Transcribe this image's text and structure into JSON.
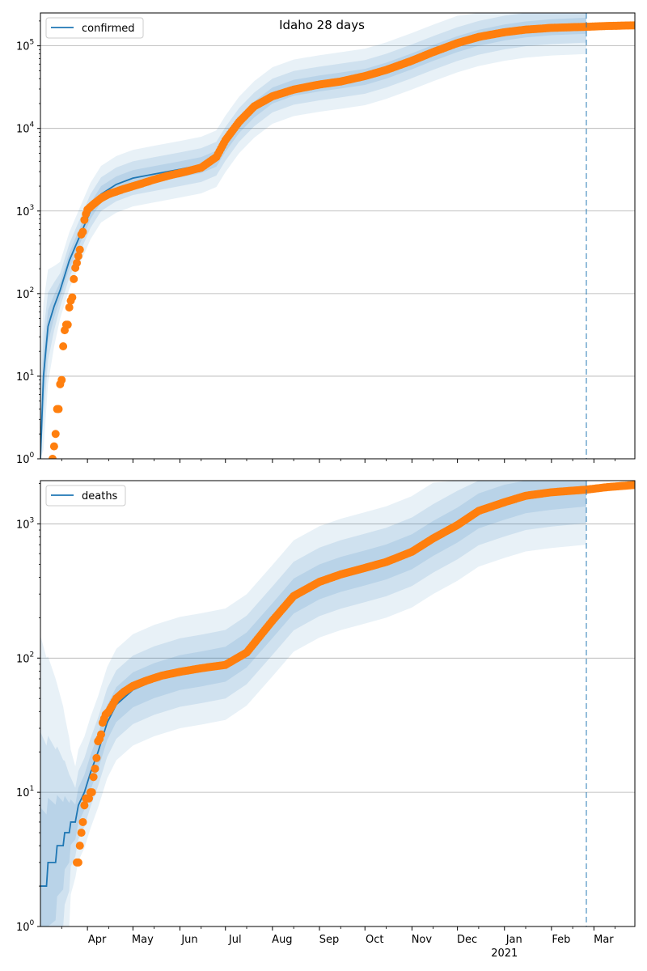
{
  "figure": {
    "title": "Idaho 28 days"
  },
  "chart_data": [
    {
      "type": "line",
      "panel": "top",
      "scale": "log",
      "ylim": [
        1,
        250000
      ],
      "xlim": [
        "2020-03-01",
        "2021-03-28"
      ],
      "legend": {
        "label": "confirmed",
        "placement": "top-left"
      },
      "forecast_marker": "2021-02-24",
      "yticks": [
        {
          "value": 1,
          "base": "10",
          "exp": "0"
        },
        {
          "value": 10,
          "base": "10",
          "exp": "1"
        },
        {
          "value": 100,
          "base": "10",
          "exp": "2"
        },
        {
          "value": 1000,
          "base": "10",
          "exp": "3"
        },
        {
          "value": 10000,
          "base": "10",
          "exp": "4"
        },
        {
          "value": 100000,
          "base": "10",
          "exp": "5"
        }
      ],
      "grid": "y",
      "model": [
        [
          "2020-03-01",
          1
        ],
        [
          "2020-03-03",
          10
        ],
        [
          "2020-03-06",
          40
        ],
        [
          "2020-03-10",
          70
        ],
        [
          "2020-03-14",
          110
        ],
        [
          "2020-03-20",
          250
        ],
        [
          "2020-03-27",
          500
        ],
        [
          "2020-04-03",
          1000
        ],
        [
          "2020-04-10",
          1600
        ],
        [
          "2020-04-20",
          2100
        ],
        [
          "2020-05-01",
          2500
        ],
        [
          "2020-05-15",
          2800
        ],
        [
          "2020-06-01",
          3200
        ],
        [
          "2020-06-15",
          3600
        ],
        [
          "2020-06-25",
          4300
        ],
        [
          "2020-07-01",
          6500
        ],
        [
          "2020-07-10",
          11000
        ],
        [
          "2020-07-20",
          17000
        ],
        [
          "2020-08-01",
          25000
        ],
        [
          "2020-08-15",
          31000
        ],
        [
          "2020-09-01",
          35000
        ],
        [
          "2020-09-15",
          38000
        ],
        [
          "2020-10-01",
          42000
        ],
        [
          "2020-10-15",
          50000
        ],
        [
          "2020-11-01",
          65000
        ],
        [
          "2020-11-15",
          82000
        ],
        [
          "2020-12-01",
          105000
        ],
        [
          "2020-12-15",
          125000
        ],
        [
          "2021-01-01",
          145000
        ],
        [
          "2021-01-15",
          158000
        ],
        [
          "2021-02-01",
          168000
        ],
        [
          "2021-02-24",
          175000
        ]
      ],
      "observed": [
        [
          "2020-03-09",
          1
        ],
        [
          "2020-03-11",
          2
        ],
        [
          "2020-03-12",
          4
        ],
        [
          "2020-03-13",
          4
        ],
        [
          "2020-03-14",
          8
        ],
        [
          "2020-03-15",
          9
        ],
        [
          "2020-03-16",
          23
        ],
        [
          "2020-03-17",
          36
        ],
        [
          "2020-03-18",
          42
        ],
        [
          "2020-03-19",
          42
        ],
        [
          "2020-03-20",
          68
        ],
        [
          "2020-03-21",
          82
        ],
        [
          "2020-03-22",
          90
        ],
        [
          "2020-03-23",
          150
        ],
        [
          "2020-03-24",
          205
        ],
        [
          "2020-03-25",
          235
        ],
        [
          "2020-03-26",
          285
        ],
        [
          "2020-03-27",
          340
        ],
        [
          "2020-03-28",
          520
        ],
        [
          "2020-03-29",
          560
        ],
        [
          "2020-03-30",
          780
        ],
        [
          "2020-03-31",
          920
        ],
        [
          "2020-04-01",
          1040
        ],
        [
          "2020-04-05",
          1210
        ],
        [
          "2020-04-10",
          1430
        ],
        [
          "2020-04-15",
          1600
        ],
        [
          "2020-04-25",
          1850
        ],
        [
          "2020-05-05",
          2100
        ],
        [
          "2020-05-15",
          2400
        ],
        [
          "2020-05-25",
          2700
        ],
        [
          "2020-06-05",
          3000
        ],
        [
          "2020-06-15",
          3350
        ],
        [
          "2020-06-25",
          4500
        ],
        [
          "2020-07-01",
          7200
        ],
        [
          "2020-07-10",
          12000
        ],
        [
          "2020-07-20",
          18500
        ],
        [
          "2020-08-01",
          24500
        ],
        [
          "2020-08-15",
          29500
        ],
        [
          "2020-09-01",
          34000
        ],
        [
          "2020-09-15",
          37000
        ],
        [
          "2020-10-01",
          43000
        ],
        [
          "2020-10-15",
          51000
        ],
        [
          "2020-11-01",
          66000
        ],
        [
          "2020-11-15",
          84000
        ],
        [
          "2020-12-01",
          108000
        ],
        [
          "2020-12-15",
          128000
        ],
        [
          "2021-01-01",
          146000
        ],
        [
          "2021-01-15",
          157000
        ],
        [
          "2021-02-01",
          165000
        ],
        [
          "2021-02-24",
          170000
        ],
        [
          "2021-03-10",
          174000
        ],
        [
          "2021-03-28",
          177000
        ]
      ]
    },
    {
      "type": "line",
      "panel": "bottom",
      "scale": "log",
      "ylim": [
        1,
        2100
      ],
      "xlim": [
        "2020-03-01",
        "2021-03-28"
      ],
      "legend": {
        "label": "deaths",
        "placement": "top-left"
      },
      "forecast_marker": "2021-02-24",
      "yticks": [
        {
          "value": 1,
          "base": "10",
          "exp": "0"
        },
        {
          "value": 10,
          "base": "10",
          "exp": "1"
        },
        {
          "value": 100,
          "base": "10",
          "exp": "2"
        },
        {
          "value": 1000,
          "base": "10",
          "exp": "3"
        }
      ],
      "grid": "y",
      "model": [
        [
          "2020-03-01",
          2
        ],
        [
          "2020-03-05",
          2
        ],
        [
          "2020-03-06",
          3
        ],
        [
          "2020-03-11",
          3
        ],
        [
          "2020-03-12",
          4
        ],
        [
          "2020-03-16",
          4
        ],
        [
          "2020-03-17",
          5
        ],
        [
          "2020-03-20",
          5
        ],
        [
          "2020-03-21",
          6
        ],
        [
          "2020-03-24",
          6
        ],
        [
          "2020-03-26",
          8
        ],
        [
          "2020-03-30",
          10
        ],
        [
          "2020-04-03",
          14
        ],
        [
          "2020-04-08",
          20
        ],
        [
          "2020-04-14",
          33
        ],
        [
          "2020-04-20",
          45
        ],
        [
          "2020-05-01",
          58
        ],
        [
          "2020-05-15",
          68
        ],
        [
          "2020-06-01",
          78
        ],
        [
          "2020-06-15",
          83
        ],
        [
          "2020-07-01",
          90
        ],
        [
          "2020-07-15",
          115
        ],
        [
          "2020-08-01",
          190
        ],
        [
          "2020-08-15",
          290
        ],
        [
          "2020-09-01",
          370
        ],
        [
          "2020-09-15",
          420
        ],
        [
          "2020-10-01",
          470
        ],
        [
          "2020-10-15",
          520
        ],
        [
          "2020-11-01",
          620
        ],
        [
          "2020-11-15",
          780
        ],
        [
          "2020-12-01",
          980
        ],
        [
          "2020-12-15",
          1250
        ],
        [
          "2021-01-01",
          1450
        ],
        [
          "2021-01-15",
          1620
        ],
        [
          "2021-02-01",
          1720
        ],
        [
          "2021-02-24",
          1820
        ]
      ],
      "observed": [
        [
          "2020-03-25",
          3
        ],
        [
          "2020-03-26",
          3
        ],
        [
          "2020-03-27",
          4
        ],
        [
          "2020-03-28",
          5
        ],
        [
          "2020-03-29",
          6
        ],
        [
          "2020-03-30",
          8
        ],
        [
          "2020-03-31",
          9
        ],
        [
          "2020-04-02",
          9
        ],
        [
          "2020-04-03",
          10
        ],
        [
          "2020-04-04",
          10
        ],
        [
          "2020-04-05",
          13
        ],
        [
          "2020-04-06",
          15
        ],
        [
          "2020-04-07",
          18
        ],
        [
          "2020-04-08",
          24
        ],
        [
          "2020-04-09",
          25
        ],
        [
          "2020-04-10",
          27
        ],
        [
          "2020-04-11",
          33
        ],
        [
          "2020-04-13",
          38
        ],
        [
          "2020-04-15",
          40
        ],
        [
          "2020-04-20",
          50
        ],
        [
          "2020-04-25",
          56
        ],
        [
          "2020-05-01",
          62
        ],
        [
          "2020-05-10",
          68
        ],
        [
          "2020-05-20",
          74
        ],
        [
          "2020-06-01",
          79
        ],
        [
          "2020-06-15",
          84
        ],
        [
          "2020-07-01",
          89
        ],
        [
          "2020-07-15",
          110
        ],
        [
          "2020-08-01",
          190
        ],
        [
          "2020-08-15",
          290
        ],
        [
          "2020-09-01",
          370
        ],
        [
          "2020-09-15",
          420
        ],
        [
          "2020-10-01",
          470
        ],
        [
          "2020-10-15",
          520
        ],
        [
          "2020-11-01",
          620
        ],
        [
          "2020-11-15",
          780
        ],
        [
          "2020-12-01",
          980
        ],
        [
          "2020-12-15",
          1250
        ],
        [
          "2021-01-01",
          1450
        ],
        [
          "2021-01-15",
          1620
        ],
        [
          "2021-02-01",
          1720
        ],
        [
          "2021-02-24",
          1800
        ],
        [
          "2021-03-10",
          1880
        ],
        [
          "2021-03-28",
          1950
        ]
      ]
    }
  ],
  "x_axis": {
    "ticks": [
      {
        "date": "2020-04-01",
        "label": "Apr"
      },
      {
        "date": "2020-05-01",
        "label": "May"
      },
      {
        "date": "2020-06-01",
        "label": "Jun"
      },
      {
        "date": "2020-07-01",
        "label": "Jul"
      },
      {
        "date": "2020-08-01",
        "label": "Aug"
      },
      {
        "date": "2020-09-01",
        "label": "Sep"
      },
      {
        "date": "2020-10-01",
        "label": "Oct"
      },
      {
        "date": "2020-11-01",
        "label": "Nov"
      },
      {
        "date": "2020-12-01",
        "label": "Dec"
      },
      {
        "date": "2021-01-01",
        "label": "Jan"
      },
      {
        "date": "2021-02-01",
        "label": "Feb"
      },
      {
        "date": "2021-03-01",
        "label": "Mar"
      }
    ],
    "year_label": "2021"
  },
  "colors": {
    "model_line": "#1f77b4",
    "observed": "#ff7f0e",
    "band": "#1f77b4",
    "grid": "#b0b0b0",
    "forecast_marker": "#1f77b4"
  }
}
